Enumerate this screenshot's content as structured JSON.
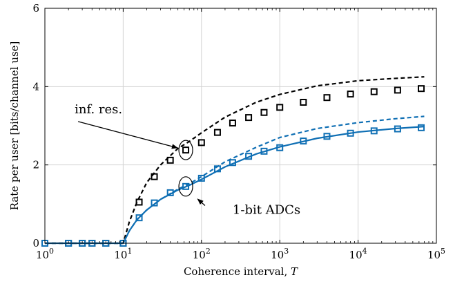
{
  "chart_data": {
    "type": "line",
    "xscale": "log",
    "xlim": [
      1,
      100000
    ],
    "ylim": [
      0,
      6
    ],
    "grid": true,
    "xlabel_prefix": "Coherence interval, ",
    "xlabel_var": "T",
    "ylabel": "Rate per user [bits/channel use]",
    "x_ticks": [
      {
        "value": 1,
        "base": "10",
        "exp": "0"
      },
      {
        "value": 10,
        "base": "10",
        "exp": "1"
      },
      {
        "value": 100,
        "base": "10",
        "exp": "2"
      },
      {
        "value": 1000,
        "base": "10",
        "exp": "3"
      },
      {
        "value": 10000,
        "base": "10",
        "exp": "4"
      },
      {
        "value": 100000,
        "base": "10",
        "exp": "5"
      }
    ],
    "y_ticks": [
      {
        "value": 0,
        "label": "0"
      },
      {
        "value": 2,
        "label": "2"
      },
      {
        "value": 4,
        "label": "4"
      },
      {
        "value": 6,
        "label": "6"
      }
    ],
    "colors": {
      "black": "#000000",
      "blue": "#0f6fb4"
    },
    "series": [
      {
        "color": "#000000",
        "style": "dashed",
        "x": [
          1,
          10,
          12,
          15,
          20,
          30,
          50,
          70,
          100,
          200,
          500,
          1000,
          3000,
          10000,
          30000,
          70000
        ],
        "y": [
          0,
          0,
          0.55,
          1.05,
          1.55,
          2.0,
          2.42,
          2.6,
          2.82,
          3.22,
          3.6,
          3.8,
          4.02,
          4.15,
          4.21,
          4.25
        ]
      },
      {
        "color": "#000000",
        "style": "markers",
        "x": [
          1,
          2,
          3,
          4,
          6,
          10,
          16,
          25,
          40,
          63,
          100,
          160,
          250,
          400,
          630,
          1000,
          2000,
          4000,
          8000,
          16000,
          32000,
          64000
        ],
        "y": [
          0,
          0,
          0,
          0,
          0,
          0,
          1.05,
          1.7,
          2.12,
          2.38,
          2.57,
          2.83,
          3.07,
          3.21,
          3.34,
          3.47,
          3.6,
          3.72,
          3.81,
          3.87,
          3.91,
          3.95
        ]
      },
      {
        "color": "#0f6fb4",
        "style": "dashed",
        "x": [
          1,
          10,
          12,
          15,
          20,
          30,
          50,
          70,
          100,
          200,
          500,
          1000,
          3000,
          10000,
          30000,
          70000
        ],
        "y": [
          0,
          0,
          0.32,
          0.6,
          0.85,
          1.12,
          1.38,
          1.52,
          1.7,
          2.08,
          2.45,
          2.7,
          2.93,
          3.08,
          3.18,
          3.24
        ]
      },
      {
        "color": "#0f6fb4",
        "style": "solid",
        "x": [
          1,
          10,
          12,
          15,
          20,
          30,
          50,
          70,
          100,
          200,
          500,
          1000,
          3000,
          10000,
          30000,
          70000
        ],
        "y": [
          0,
          0,
          0.32,
          0.6,
          0.85,
          1.12,
          1.36,
          1.48,
          1.63,
          1.95,
          2.28,
          2.46,
          2.68,
          2.84,
          2.93,
          2.98
        ]
      },
      {
        "color": "#0f6fb4",
        "style": "markers",
        "x": [
          1,
          2,
          3,
          4,
          6,
          10,
          16,
          25,
          40,
          63,
          100,
          160,
          250,
          400,
          630,
          1000,
          2000,
          4000,
          8000,
          16000,
          32000,
          64000
        ],
        "y": [
          0,
          0,
          0,
          0,
          0,
          0,
          0.65,
          1.03,
          1.29,
          1.45,
          1.66,
          1.9,
          2.06,
          2.22,
          2.35,
          2.44,
          2.61,
          2.73,
          2.81,
          2.87,
          2.92,
          2.95
        ]
      }
    ],
    "annotations": [
      {
        "text": "inf. res.",
        "tx": 2.4,
        "ty": 3.32,
        "ax": 63,
        "ay": 2.4,
        "circle_x": 63,
        "circle_y": 2.38
      },
      {
        "text": "1-bit ADCs",
        "tx": 250,
        "ty": 0.75,
        "ax": 70,
        "ay": 1.13,
        "circle_x": 63,
        "circle_y": 1.45
      }
    ]
  }
}
